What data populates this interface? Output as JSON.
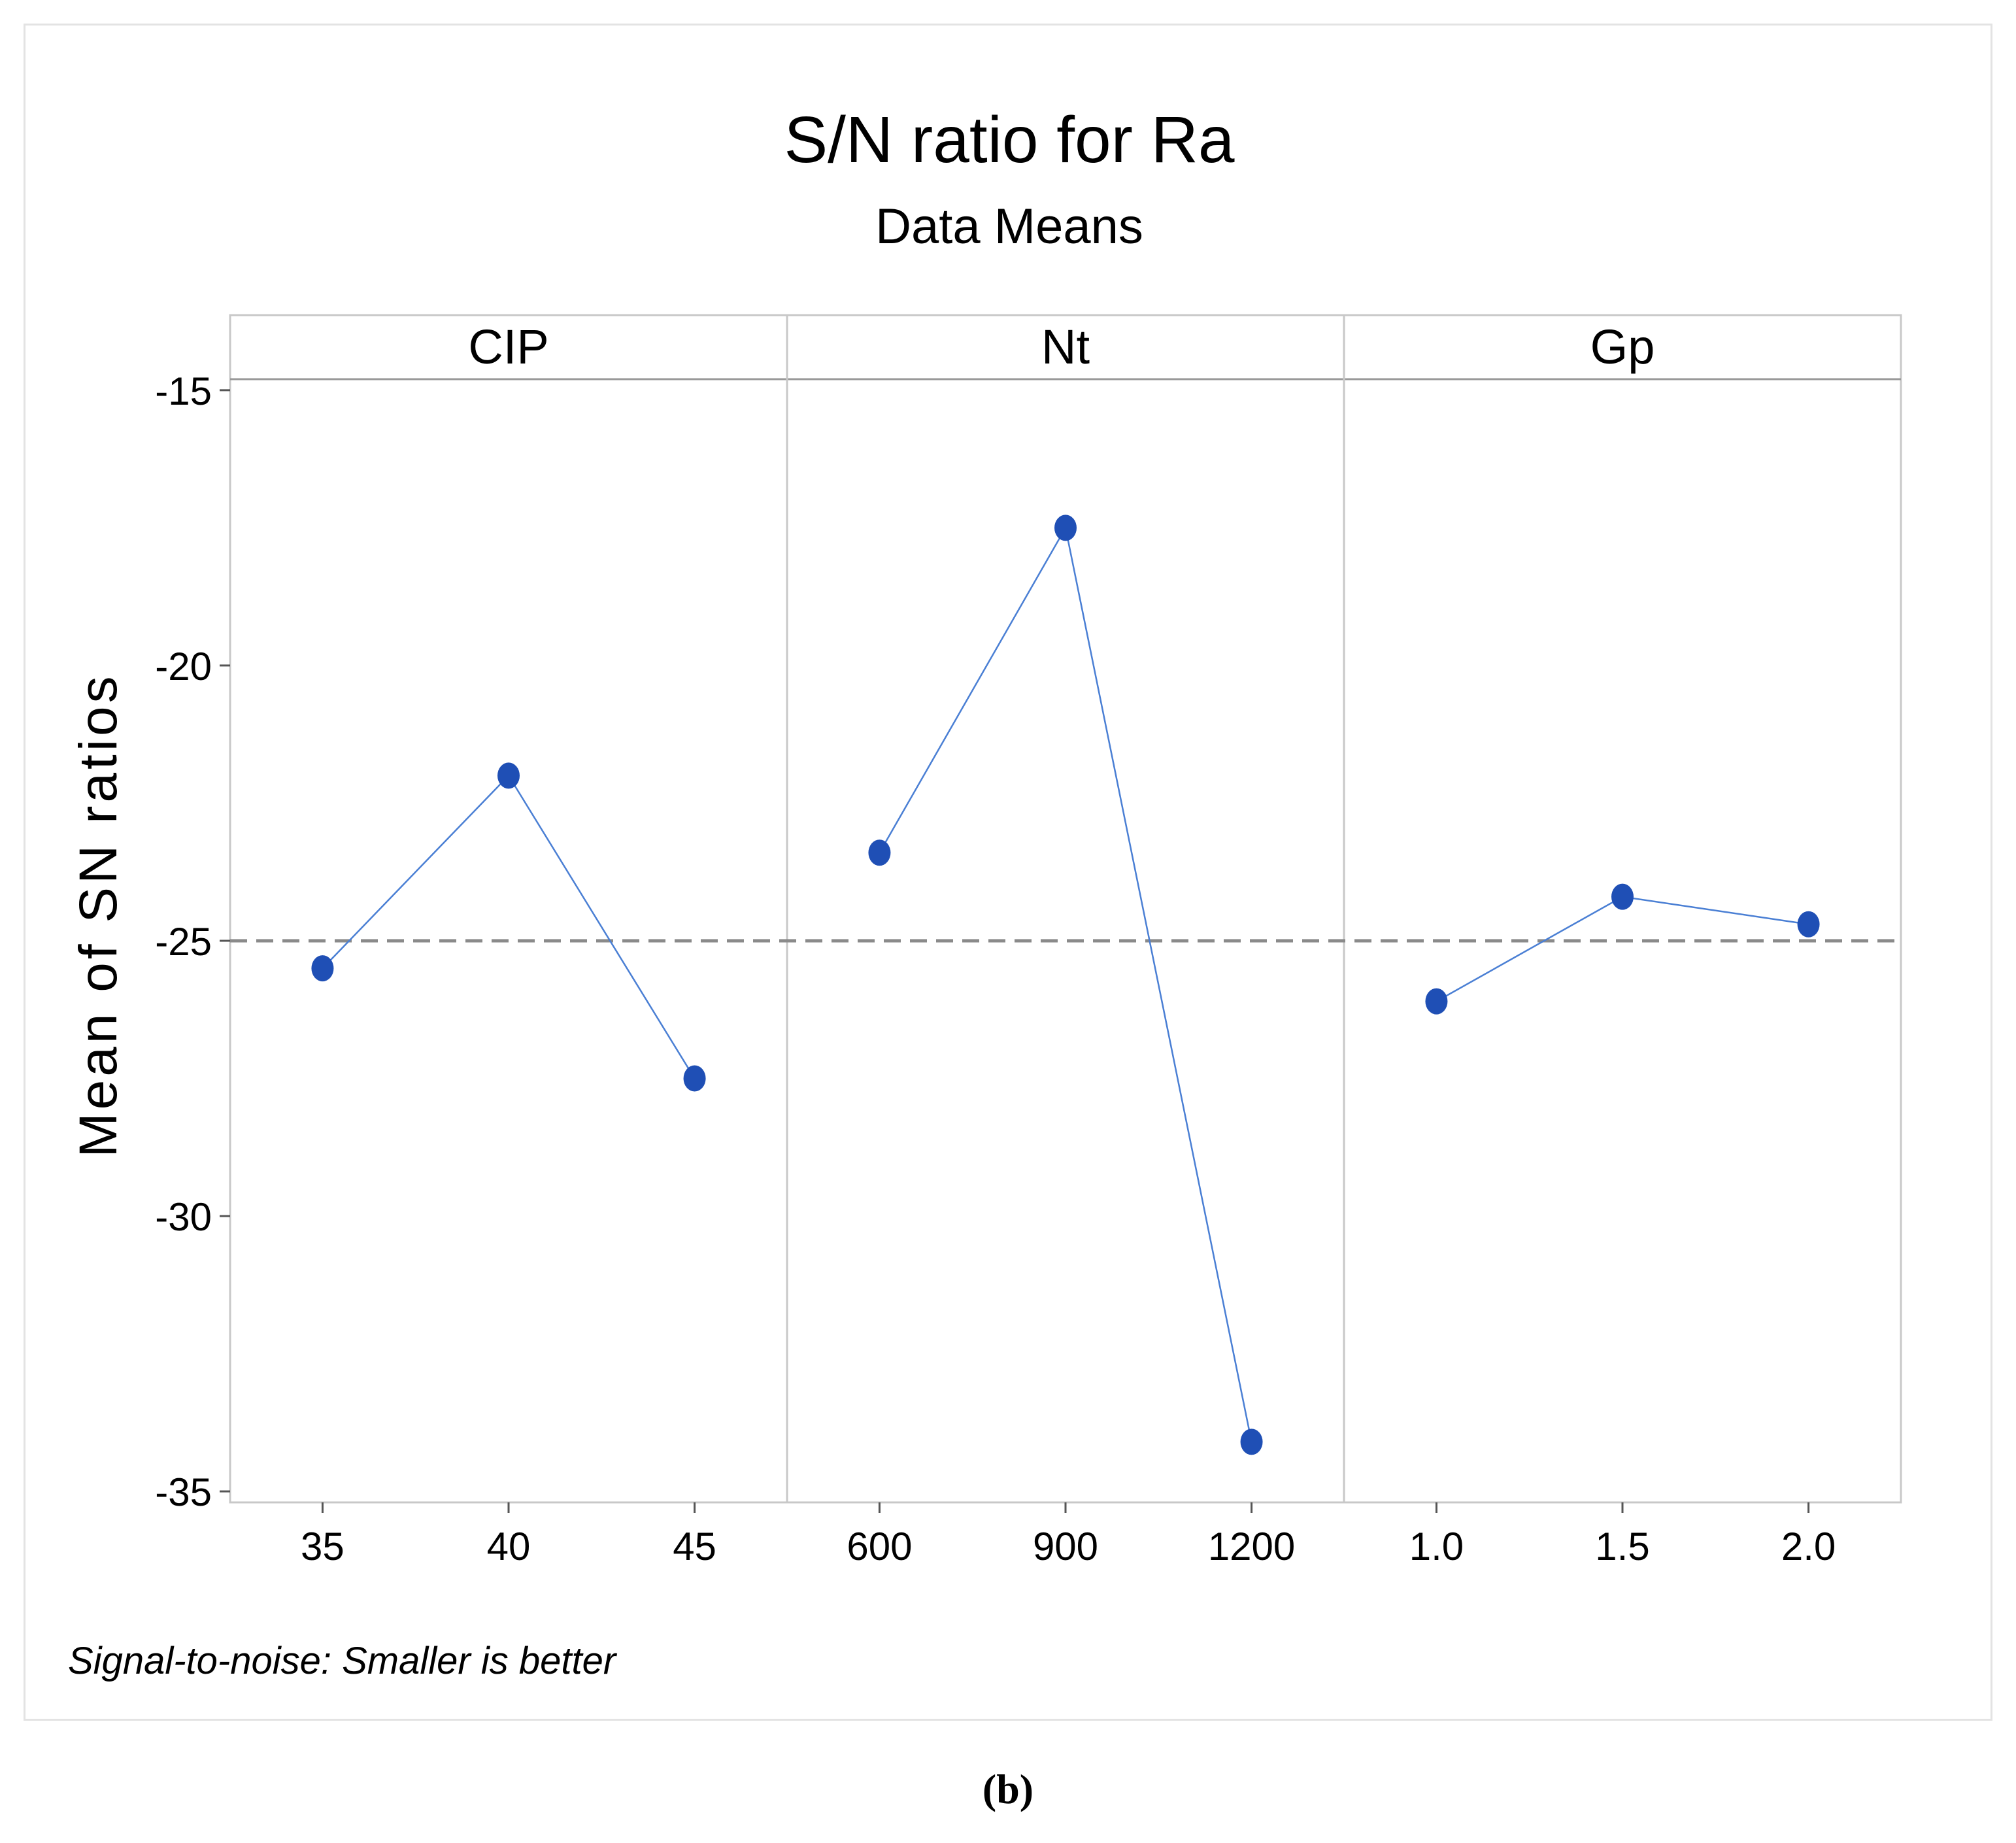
{
  "chart_data": {
    "type": "line",
    "title": "S/N ratio for Ra",
    "subtitle": "Data Means",
    "ylabel": "Mean of SN ratios",
    "ylim": [
      -35.2,
      -14.8
    ],
    "yticks": [
      -15,
      -20,
      -25,
      -30,
      -35
    ],
    "ytick_labels": [
      "-15",
      "-20",
      "-25",
      "-30",
      "-35"
    ],
    "reference_line": -25.0,
    "footnote": "Signal-to-noise: Smaller is better",
    "colors": {
      "series": "#1f4fb5",
      "line": "#4a7fd4",
      "reference": "#8a8a8a",
      "grid": "#c8c8c8"
    },
    "panels": [
      {
        "name": "CIP",
        "categories": [
          "35",
          "40",
          "45"
        ],
        "values": [
          -25.5,
          -22.0,
          -27.5
        ]
      },
      {
        "name": "Nt",
        "categories": [
          "600",
          "900",
          "1200"
        ],
        "values": [
          -23.4,
          -17.5,
          -34.1
        ]
      },
      {
        "name": "Gp",
        "categories": [
          "1.0",
          "1.5",
          "2.0"
        ],
        "values": [
          -26.1,
          -24.2,
          -24.7
        ]
      }
    ]
  },
  "caption": "(b)"
}
